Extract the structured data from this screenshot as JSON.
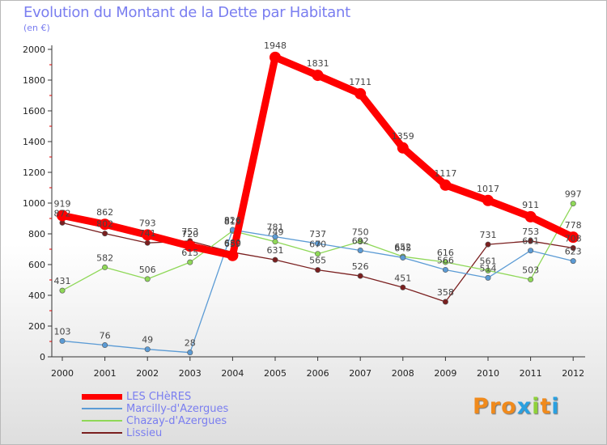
{
  "chart_data": {
    "type": "line",
    "title": "Evolution du Montant de la Dette par Habitant",
    "subtitle": "(en €)",
    "xlabel": "",
    "ylabel": "",
    "ylim": [
      0,
      2000
    ],
    "yticks": [
      0,
      200,
      400,
      600,
      800,
      1000,
      1200,
      1400,
      1600,
      1800,
      2000
    ],
    "categories": [
      "2000",
      "2001",
      "2002",
      "2003",
      "2004",
      "2005",
      "2006",
      "2007",
      "2008",
      "2009",
      "2010",
      "2011",
      "2012"
    ],
    "grid": false,
    "legend_position": "bottom-left",
    "series": [
      {
        "name": "LES CHèRES",
        "color": "#ff0000",
        "values": [
          919,
          862,
          793,
          720,
          659,
          1948,
          1831,
          1711,
          1359,
          1117,
          1017,
          911,
          778
        ]
      },
      {
        "name": "Marcilly-d'Azergues",
        "color": "#5b9bd5",
        "values": [
          103,
          76,
          49,
          28,
          826,
          781,
          737,
          692,
          645,
          566,
          514,
          691,
          623
        ]
      },
      {
        "name": "Chazay-d'Azergues",
        "color": "#8fd858",
        "values": [
          431,
          582,
          506,
          615,
          819,
          749,
          670,
          750,
          652,
          616,
          561,
          503,
          997
        ]
      },
      {
        "name": "Lissieu",
        "color": "#7a1f1f",
        "values": [
          872,
          802,
          741,
          753,
          680,
          631,
          565,
          526,
          451,
          358,
          731,
          753,
          708
        ]
      }
    ]
  },
  "brand": {
    "text": "Proxiti",
    "colors": [
      "#f08a1c",
      "#f08a1c",
      "#f08a1c",
      "#2aa0e0",
      "#8fd13a",
      "#f08a1c",
      "#2aa0e0"
    ]
  }
}
